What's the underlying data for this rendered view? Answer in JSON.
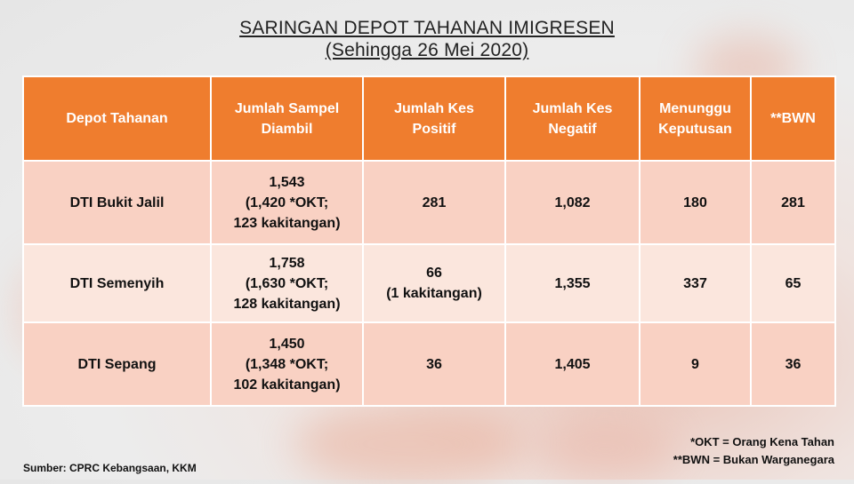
{
  "title": "SARINGAN DEPOT TAHANAN IMIGRESEN",
  "subtitle": "(Sehingga 26 Mei 2020)",
  "table": {
    "headers": [
      {
        "line1": "Depot Tahanan",
        "line2": ""
      },
      {
        "line1": "Jumlah Sampel",
        "line2": "Diambil"
      },
      {
        "line1": "Jumlah Kes",
        "line2": "Positif"
      },
      {
        "line1": "Jumlah Kes",
        "line2": "Negatif"
      },
      {
        "line1": "Menunggu",
        "line2": "Keputusan"
      },
      {
        "line1": "**BWN",
        "line2": ""
      }
    ],
    "rows": [
      {
        "depot": "DTI Bukit Jalil",
        "sampel": {
          "total": "1,543",
          "detail1": "(1,420 *OKT;",
          "detail2": "123 kakitangan)"
        },
        "positif": {
          "total": "281",
          "detail": ""
        },
        "negatif": "1,082",
        "menunggu": "180",
        "bwn": "281"
      },
      {
        "depot": "DTI Semenyih",
        "sampel": {
          "total": "1,758",
          "detail1": "(1,630 *OKT;",
          "detail2": "128 kakitangan)"
        },
        "positif": {
          "total": "66",
          "detail": "(1 kakitangan)"
        },
        "negatif": "1,355",
        "menunggu": "337",
        "bwn": "65"
      },
      {
        "depot": "DTI Sepang",
        "sampel": {
          "total": "1,450",
          "detail1": "(1,348 *OKT;",
          "detail2": "102 kakitangan)"
        },
        "positif": {
          "total": "36",
          "detail": ""
        },
        "negatif": "1,405",
        "menunggu": "9",
        "bwn": "36"
      }
    ]
  },
  "notes": [
    "*OKT = Orang Kena Tahan",
    "**BWN = Bukan Warganegara"
  ],
  "source": "Sumber: CPRC Kebangsaan, KKM"
}
